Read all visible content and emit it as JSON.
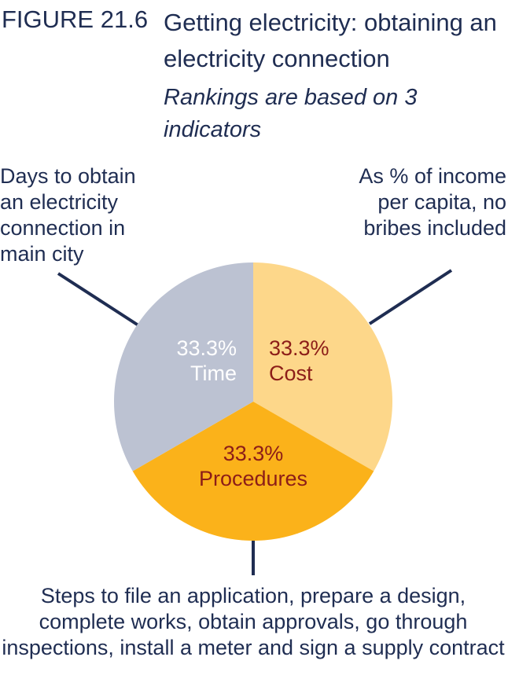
{
  "figure": {
    "label": "FIGURE 21.6",
    "title": "Getting electricity: obtaining an electricity connection",
    "subtitle": "Rankings are based on 3 indicators"
  },
  "callouts": {
    "time": "Days to obtain an electricity connection in main city",
    "cost": "As % of income per capita, no bribes included",
    "procedures": "Steps to file an application, prepare a design, complete works, obtain approvals, go through inspections, install a meter and sign a supply contract"
  },
  "chart_data": {
    "type": "pie",
    "title": "Getting electricity: obtaining an electricity connection",
    "subtitle": "Rankings are based on 3 indicators",
    "slices": [
      {
        "name": "Cost",
        "value": 33.3,
        "label": "33.3%",
        "color": "#fdd78a",
        "text_color": "#8c1d18"
      },
      {
        "name": "Procedures",
        "value": 33.3,
        "label": "33.3%",
        "color": "#fbb21a",
        "text_color": "#8c1d18"
      },
      {
        "name": "Time",
        "value": 33.3,
        "label": "33.3%",
        "color": "#bcc2d2",
        "text_color": "#ffffff"
      }
    ],
    "start_angle_deg": 0,
    "direction": "clockwise",
    "leader_line_color": "#1f2d52"
  }
}
